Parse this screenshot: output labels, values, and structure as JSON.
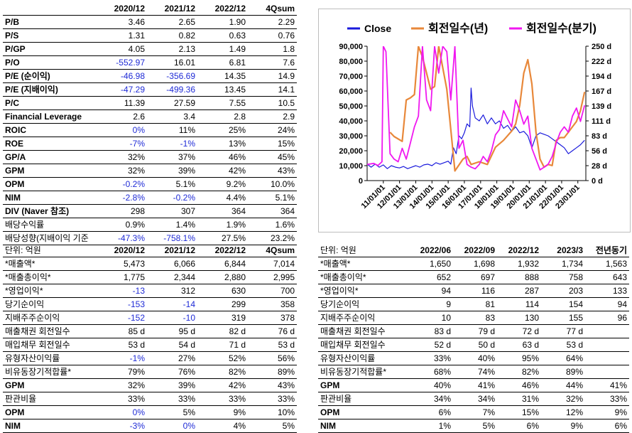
{
  "table1": {
    "columns": [
      "",
      "2020/12",
      "2021/12",
      "2022/12",
      "4Qsum"
    ],
    "rows": [
      {
        "label": "P/B",
        "bold": true,
        "values": [
          "3.46",
          "2.65",
          "1.90",
          "2.29"
        ]
      },
      {
        "label": "P/S",
        "bold": true,
        "values": [
          "1.31",
          "0.82",
          "0.63",
          "0.76"
        ]
      },
      {
        "label": "P/GP",
        "bold": true,
        "values": [
          "4.05",
          "2.13",
          "1.49",
          "1.8"
        ]
      },
      {
        "label": "P/O",
        "bold": true,
        "values": [
          "-552.97",
          "16.01",
          "6.81",
          "7.6"
        ]
      },
      {
        "label": "P/E (순이익)",
        "bold": true,
        "values": [
          "-46.98",
          "-356.69",
          "14.35",
          "14.9"
        ]
      },
      {
        "label": "P/E (지배이익)",
        "bold": true,
        "values": [
          "-47.29",
          "-499.36",
          "13.45",
          "14.1"
        ]
      },
      {
        "label": "P/C",
        "bold": true,
        "values": [
          "11.39",
          "27.59",
          "7.55",
          "10.5"
        ]
      },
      {
        "label": "Financial Leverage",
        "bold": true,
        "values": [
          "2.6",
          "3.4",
          "2.8",
          "2.9"
        ]
      },
      {
        "label": "ROIC",
        "bold": true,
        "values": [
          "0%",
          "11%",
          "25%",
          "24%"
        ]
      },
      {
        "label": "ROE",
        "bold": true,
        "values": [
          "-7%",
          "-1%",
          "13%",
          "15%"
        ]
      },
      {
        "label": "GP/A",
        "bold": true,
        "values": [
          "32%",
          "37%",
          "46%",
          "45%"
        ]
      },
      {
        "label": "GPM",
        "bold": true,
        "values": [
          "32%",
          "39%",
          "42%",
          "43%"
        ]
      },
      {
        "label": "OPM",
        "bold": true,
        "values": [
          "-0.2%",
          "5.1%",
          "9.2%",
          "10.0%"
        ]
      },
      {
        "label": "NIM",
        "bold": true,
        "values": [
          "-2.8%",
          "-0.2%",
          "4.4%",
          "5.1%"
        ]
      },
      {
        "label": "DIV (Naver 참조)",
        "bold": true,
        "values": [
          "298",
          "307",
          "364",
          "364"
        ]
      },
      {
        "label": "배당수익률",
        "bold": false,
        "values": [
          "0.9%",
          "1.4%",
          "1.9%",
          "1.6%"
        ]
      },
      {
        "label": "배당성향(지배이익 기준",
        "bold": false,
        "values": [
          "-47.3%",
          "-758.1%",
          "27.5%",
          "23.2%"
        ]
      }
    ]
  },
  "table2": {
    "columns": [
      "단위: 억원",
      "2020/12",
      "2021/12",
      "2022/12",
      "4Qsum"
    ],
    "rows": [
      {
        "label": "*매출액*",
        "bold": false,
        "values": [
          "5,473",
          "6,066",
          "6,844",
          "7,014"
        ]
      },
      {
        "label": "*매출총이익*",
        "bold": false,
        "values": [
          "1,775",
          "2,344",
          "2,880",
          "2,995"
        ]
      },
      {
        "label": "*영업이익*",
        "bold": false,
        "values": [
          "-13",
          "312",
          "630",
          "700"
        ]
      },
      {
        "label": "당기순이익",
        "bold": false,
        "values": [
          "-153",
          "-14",
          "299",
          "358"
        ]
      },
      {
        "label": "지배주주순이익",
        "bold": false,
        "values": [
          "-152",
          "-10",
          "319",
          "378"
        ]
      },
      {
        "label": "매출채권 회전일수",
        "bold": false,
        "values": [
          "85 d",
          "95 d",
          "82 d",
          "76 d"
        ]
      },
      {
        "label": "매입채무 회전일수",
        "bold": false,
        "values": [
          "53 d",
          "54 d",
          "71 d",
          "53 d"
        ]
      },
      {
        "label": "유형자산이익률",
        "bold": false,
        "values": [
          "-1%",
          "27%",
          "52%",
          "56%"
        ]
      },
      {
        "label": "비유동장기적합률*",
        "bold": false,
        "values": [
          "79%",
          "76%",
          "82%",
          "89%"
        ]
      },
      {
        "label": "GPM",
        "bold": true,
        "values": [
          "32%",
          "39%",
          "42%",
          "43%"
        ]
      },
      {
        "label": "판관비율",
        "bold": false,
        "values": [
          "33%",
          "33%",
          "33%",
          "33%"
        ]
      },
      {
        "label": "OPM",
        "bold": true,
        "values": [
          "0%",
          "5%",
          "9%",
          "10%"
        ]
      },
      {
        "label": "NIM",
        "bold": true,
        "values": [
          "-3%",
          "0%",
          "4%",
          "5%"
        ]
      }
    ]
  },
  "table3": {
    "columns": [
      "단위: 억원",
      "2022/06",
      "2022/09",
      "2022/12",
      "2023/3",
      "전년동기"
    ],
    "rows": [
      {
        "label": "*매출액*",
        "bold": false,
        "values": [
          "1,650",
          "1,698",
          "1,932",
          "1,734",
          "1,563"
        ]
      },
      {
        "label": "*매출총이익*",
        "bold": false,
        "values": [
          "652",
          "697",
          "888",
          "758",
          "643"
        ]
      },
      {
        "label": "*영업이익*",
        "bold": false,
        "values": [
          "94",
          "116",
          "287",
          "203",
          "133"
        ]
      },
      {
        "label": "당기순이익",
        "bold": false,
        "values": [
          "9",
          "81",
          "114",
          "154",
          "94"
        ]
      },
      {
        "label": "지배주주순이익",
        "bold": false,
        "values": [
          "10",
          "83",
          "130",
          "155",
          "96"
        ]
      },
      {
        "label": "매출채권 회전일수",
        "bold": false,
        "values": [
          "83 d",
          "79 d",
          "72 d",
          "77 d",
          ""
        ]
      },
      {
        "label": "매입채무 회전일수",
        "bold": false,
        "values": [
          "52 d",
          "50 d",
          "63 d",
          "53 d",
          ""
        ]
      },
      {
        "label": "유형자산이익률",
        "bold": false,
        "values": [
          "33%",
          "40%",
          "95%",
          "64%",
          ""
        ]
      },
      {
        "label": "비유동장기적합률*",
        "bold": false,
        "values": [
          "68%",
          "74%",
          "82%",
          "89%",
          ""
        ]
      },
      {
        "label": "GPM",
        "bold": true,
        "values": [
          "40%",
          "41%",
          "46%",
          "44%",
          "41%"
        ]
      },
      {
        "label": "판관비율",
        "bold": false,
        "values": [
          "34%",
          "34%",
          "31%",
          "32%",
          "33%"
        ]
      },
      {
        "label": "OPM",
        "bold": true,
        "values": [
          "6%",
          "7%",
          "15%",
          "12%",
          "9%"
        ]
      },
      {
        "label": "NIM",
        "bold": true,
        "values": [
          "1%",
          "5%",
          "6%",
          "9%",
          "6%"
        ]
      }
    ]
  },
  "colors": {
    "negative": "#1f2bd6",
    "close": "#1a1adc",
    "annual": "#e8883a",
    "quarterly": "#f018f0"
  },
  "chart_data": {
    "type": "line",
    "legend_position": "top",
    "grid": false,
    "x_ticks": [
      "11/01/01",
      "12/01/01",
      "13/01/01",
      "14/01/01",
      "15/01/01",
      "16/01/01",
      "17/01/01",
      "18/01/01",
      "19/01/01",
      "20/01/01",
      "21/01/01",
      "22/01/01",
      "23/01/01"
    ],
    "x_range": [
      "2010-01-01",
      "2023-06-30"
    ],
    "y_left": {
      "ticks": [
        "0",
        "10,000",
        "20,000",
        "30,000",
        "40,000",
        "50,000",
        "60,000",
        "70,000",
        "80,000",
        "90,000"
      ],
      "range": [
        0,
        90000
      ]
    },
    "y_right": {
      "ticks": [
        "0 d",
        "28 d",
        "56 d",
        "83 d",
        "111 d",
        "139 d",
        "167 d",
        "194 d",
        "222 d",
        "250 d"
      ],
      "range": [
        0,
        250
      ]
    },
    "series": [
      {
        "name": "Close",
        "axis": "left",
        "points": [
          [
            "2010-01",
            11000
          ],
          [
            "2010-04",
            9000
          ],
          [
            "2010-07",
            11000
          ],
          [
            "2010-10",
            9000
          ],
          [
            "2011-01",
            10500
          ],
          [
            "2011-04",
            8000
          ],
          [
            "2011-07",
            10000
          ],
          [
            "2011-10",
            9000
          ],
          [
            "2012-01",
            8500
          ],
          [
            "2012-04",
            9500
          ],
          [
            "2012-07",
            8000
          ],
          [
            "2012-10",
            9000
          ],
          [
            "2013-01",
            10000
          ],
          [
            "2013-04",
            9000
          ],
          [
            "2013-07",
            10500
          ],
          [
            "2013-10",
            11000
          ],
          [
            "2014-01",
            10000
          ],
          [
            "2014-04",
            12000
          ],
          [
            "2014-07",
            11000
          ],
          [
            "2014-10",
            12000
          ],
          [
            "2015-01",
            13000
          ],
          [
            "2015-03",
            11000
          ],
          [
            "2015-05",
            22000
          ],
          [
            "2015-07",
            18000
          ],
          [
            "2015-09",
            30000
          ],
          [
            "2015-11",
            28000
          ],
          [
            "2016-01",
            32000
          ],
          [
            "2016-03",
            38000
          ],
          [
            "2016-05",
            36000
          ],
          [
            "2016-06",
            62000
          ],
          [
            "2016-07",
            50000
          ],
          [
            "2016-09",
            42000
          ],
          [
            "2016-12",
            40000
          ],
          [
            "2017-03",
            44000
          ],
          [
            "2017-06",
            38000
          ],
          [
            "2017-09",
            42000
          ],
          [
            "2017-12",
            38000
          ],
          [
            "2018-03",
            40000
          ],
          [
            "2018-06",
            35000
          ],
          [
            "2018-09",
            37000
          ],
          [
            "2018-12",
            33000
          ],
          [
            "2019-03",
            36000
          ],
          [
            "2019-06",
            32000
          ],
          [
            "2019-09",
            33000
          ],
          [
            "2019-12",
            30000
          ],
          [
            "2020-03",
            22000
          ],
          [
            "2020-06",
            30000
          ],
          [
            "2020-09",
            32000
          ],
          [
            "2020-12",
            31000
          ],
          [
            "2021-03",
            30000
          ],
          [
            "2021-06",
            28000
          ],
          [
            "2021-09",
            26000
          ],
          [
            "2021-12",
            24000
          ],
          [
            "2022-03",
            22000
          ],
          [
            "2022-06",
            18000
          ],
          [
            "2022-09",
            20000
          ],
          [
            "2022-12",
            22000
          ],
          [
            "2023-03",
            24000
          ],
          [
            "2023-06",
            27000
          ]
        ]
      },
      {
        "name": "회전일수(년)",
        "axis": "right",
        "points": [
          [
            "2011-06",
            90
          ],
          [
            "2011-09",
            82
          ],
          [
            "2012-03",
            73
          ],
          [
            "2012-06",
            150
          ],
          [
            "2012-09",
            154
          ],
          [
            "2012-12",
            160
          ],
          [
            "2013-03",
            250
          ],
          [
            "2013-06",
            230
          ],
          [
            "2013-09",
            200
          ],
          [
            "2013-12",
            170
          ],
          [
            "2014-03",
            175
          ],
          [
            "2014-06",
            250
          ],
          [
            "2014-09",
            210
          ],
          [
            "2014-12",
            170
          ],
          [
            "2015-06",
            18
          ],
          [
            "2015-12",
            40
          ],
          [
            "2016-03",
            45
          ],
          [
            "2016-06",
            30
          ],
          [
            "2016-12",
            35
          ],
          [
            "2017-06",
            30
          ],
          [
            "2017-12",
            62
          ],
          [
            "2018-06",
            75
          ],
          [
            "2018-12",
            92
          ],
          [
            "2019-03",
            105
          ],
          [
            "2019-06",
            140
          ],
          [
            "2019-09",
            200
          ],
          [
            "2019-12",
            225
          ],
          [
            "2020-03",
            180
          ],
          [
            "2020-06",
            90
          ],
          [
            "2020-09",
            40
          ],
          [
            "2020-12",
            25
          ],
          [
            "2021-03",
            30
          ],
          [
            "2021-06",
            28
          ],
          [
            "2021-09",
            75
          ],
          [
            "2021-12",
            80
          ],
          [
            "2022-03",
            80
          ],
          [
            "2022-06",
            90
          ],
          [
            "2022-09",
            100
          ],
          [
            "2022-12",
            110
          ],
          [
            "2023-03",
            130
          ],
          [
            "2023-06",
            165
          ]
        ]
      },
      {
        "name": "회전일수(분기)",
        "axis": "right",
        "points": [
          [
            "2010-01",
            30
          ],
          [
            "2010-06",
            32
          ],
          [
            "2010-09",
            28
          ],
          [
            "2010-12",
            35
          ],
          [
            "2011-01",
            250
          ],
          [
            "2011-03",
            240
          ],
          [
            "2011-06",
            50
          ],
          [
            "2011-09",
            40
          ],
          [
            "2011-12",
            35
          ],
          [
            "2012-03",
            60
          ],
          [
            "2012-06",
            40
          ],
          [
            "2012-09",
            70
          ],
          [
            "2012-12",
            100
          ],
          [
            "2013-03",
            120
          ],
          [
            "2013-06",
            250
          ],
          [
            "2013-09",
            150
          ],
          [
            "2013-12",
            130
          ],
          [
            "2014-03",
            250
          ],
          [
            "2014-06",
            200
          ],
          [
            "2014-09",
            250
          ],
          [
            "2014-12",
            240
          ],
          [
            "2015-03",
            150
          ],
          [
            "2015-06",
            250
          ],
          [
            "2015-09",
            60
          ],
          [
            "2015-12",
            75
          ],
          [
            "2016-03",
            30
          ],
          [
            "2016-06",
            25
          ],
          [
            "2016-09",
            22
          ],
          [
            "2016-12",
            30
          ],
          [
            "2017-03",
            45
          ],
          [
            "2017-06",
            35
          ],
          [
            "2017-09",
            55
          ],
          [
            "2017-12",
            85
          ],
          [
            "2018-03",
            95
          ],
          [
            "2018-06",
            130
          ],
          [
            "2018-09",
            115
          ],
          [
            "2018-12",
            100
          ],
          [
            "2019-03",
            150
          ],
          [
            "2019-06",
            130
          ],
          [
            "2019-09",
            105
          ],
          [
            "2019-12",
            120
          ],
          [
            "2020-03",
            60
          ],
          [
            "2020-06",
            40
          ],
          [
            "2020-09",
            20
          ],
          [
            "2020-12",
            25
          ],
          [
            "2021-03",
            30
          ],
          [
            "2021-06",
            45
          ],
          [
            "2021-09",
            70
          ],
          [
            "2021-12",
            90
          ],
          [
            "2022-03",
            100
          ],
          [
            "2022-06",
            90
          ],
          [
            "2022-09",
            120
          ],
          [
            "2022-12",
            135
          ],
          [
            "2023-03",
            110
          ],
          [
            "2023-06",
            140
          ]
        ]
      }
    ]
  }
}
